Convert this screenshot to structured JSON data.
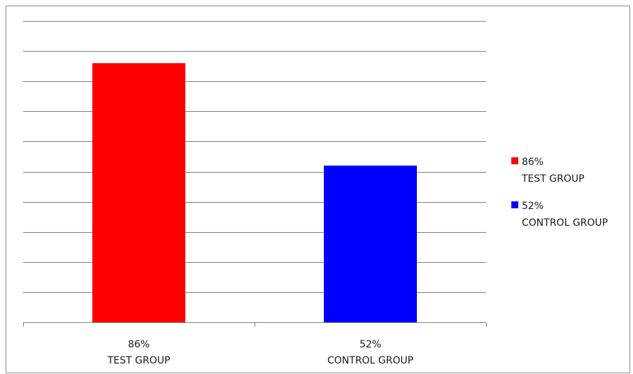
{
  "chart_data": {
    "type": "bar",
    "categories": [
      [
        "86%",
        "TEST GROUP"
      ],
      [
        "52%",
        "CONTROL GROUP"
      ]
    ],
    "values": [
      86,
      52
    ],
    "ylim": [
      0,
      100
    ],
    "gridline_step": 10,
    "y_tick_labels_shown": false,
    "grid": true,
    "legend": "right",
    "colors": [
      "#ff0000",
      "#0000ff"
    ],
    "legend_entries": [
      {
        "line1": "86%",
        "line2": "TEST GROUP",
        "color": "#ff0000"
      },
      {
        "line1": "52%",
        "line2": "CONTROL GROUP",
        "color": "#0000ff"
      }
    ],
    "gridline_color": "#7f7f7f",
    "axis_color": "#7f7f7f"
  }
}
